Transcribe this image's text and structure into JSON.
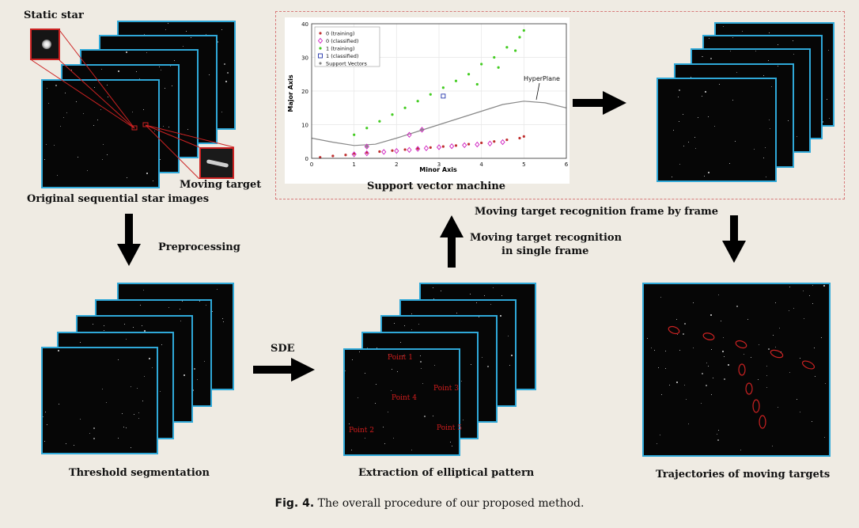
{
  "labels": {
    "static_star": "Static star",
    "moving_target": "Moving target",
    "original": "Original sequential star images",
    "preprocessing": "Preprocessing",
    "threshold": "Threshold segmentation",
    "sde": "SDE",
    "extraction": "Extraction of elliptical pattern",
    "svm": "Support vector machine",
    "recog_single_1": "Moving target recognition",
    "recog_single_2": "in single frame",
    "recog_frame": "Moving target recognition frame by frame",
    "trajectories": "Trajectories of moving targets"
  },
  "points": [
    "Point 1",
    "Point 2",
    "Point 3",
    "Point 4",
    "Point 5"
  ],
  "caption": {
    "fig": "Fig. 4.",
    "text": " The overall procedure of our proposed method."
  },
  "colors": {
    "frame_border": "#2fa8d8",
    "dashed_box": "#d77a7a",
    "annotation_red": "#d21d1d",
    "background": "#efebe3"
  },
  "chart_data": {
    "type": "scatter",
    "xlabel": "Minor Axis",
    "ylabel": "Major Axis",
    "xlim": [
      0,
      6
    ],
    "ylim": [
      0,
      40
    ],
    "x_ticks": [
      0,
      1,
      2,
      3,
      4,
      5,
      6
    ],
    "y_ticks": [
      0,
      10,
      20,
      30,
      40
    ],
    "legend_position": "top-left",
    "legend": [
      "0 (training)",
      "0 (classified)",
      "1 (training)",
      "1 (classified)",
      "Support Vectors"
    ],
    "hyperplane_label": "HyperPlane",
    "series": [
      {
        "name": "0 (training)",
        "color": "#c03030",
        "marker": "dot",
        "x": [
          0.2,
          0.5,
          0.8,
          1.0,
          1.3,
          1.6,
          1.9,
          2.2,
          2.5,
          2.8,
          3.1,
          3.4,
          3.7,
          4.0,
          4.3,
          4.6,
          4.9,
          5.0
        ],
        "y": [
          0.3,
          0.7,
          1.0,
          1.4,
          1.7,
          2.0,
          2.3,
          2.6,
          2.9,
          3.2,
          3.5,
          3.8,
          4.2,
          4.6,
          5.0,
          5.5,
          6.0,
          6.5
        ]
      },
      {
        "name": "0 (classified)",
        "color": "#d020c0",
        "marker": "diamond",
        "x": [
          1.0,
          1.3,
          1.7,
          2.0,
          2.3,
          2.5,
          2.7,
          3.0,
          3.3,
          3.6,
          3.9,
          4.2,
          4.5,
          2.6,
          1.3,
          2.3
        ],
        "y": [
          1.2,
          1.5,
          1.9,
          2.2,
          2.5,
          2.8,
          3.0,
          3.3,
          3.6,
          3.9,
          4.1,
          4.4,
          4.8,
          8.5,
          3.5,
          7.0
        ]
      },
      {
        "name": "1 (training)",
        "color": "#44cc22",
        "marker": "dot",
        "x": [
          1.0,
          1.3,
          1.6,
          1.9,
          2.2,
          2.5,
          2.8,
          3.1,
          3.4,
          3.7,
          4.0,
          4.3,
          4.6,
          4.9,
          5.0,
          4.8,
          4.4,
          3.9
        ],
        "y": [
          7.0,
          9.0,
          11.0,
          13.0,
          15.0,
          17.0,
          19.0,
          21.0,
          23.0,
          25.0,
          28.0,
          30.0,
          33.0,
          36.0,
          38.0,
          32.0,
          27.0,
          22.0
        ]
      },
      {
        "name": "1 (classified)",
        "color": "#2233aa",
        "marker": "square",
        "x": [
          3.1
        ],
        "y": [
          18.5
        ]
      },
      {
        "name": "Support Vectors",
        "color": "#888888",
        "marker": "dot",
        "x": [
          2.6,
          1.3
        ],
        "y": [
          8.5,
          3.5
        ]
      }
    ],
    "hyperplane": {
      "x": [
        0,
        0.5,
        1,
        1.5,
        2,
        2.5,
        3,
        3.5,
        4,
        4.5,
        5,
        5.5,
        6
      ],
      "y": [
        6,
        4.8,
        3.8,
        4.2,
        6.0,
        8.0,
        10.0,
        12.0,
        14.0,
        16.0,
        17.0,
        16.5,
        15.0
      ]
    }
  }
}
